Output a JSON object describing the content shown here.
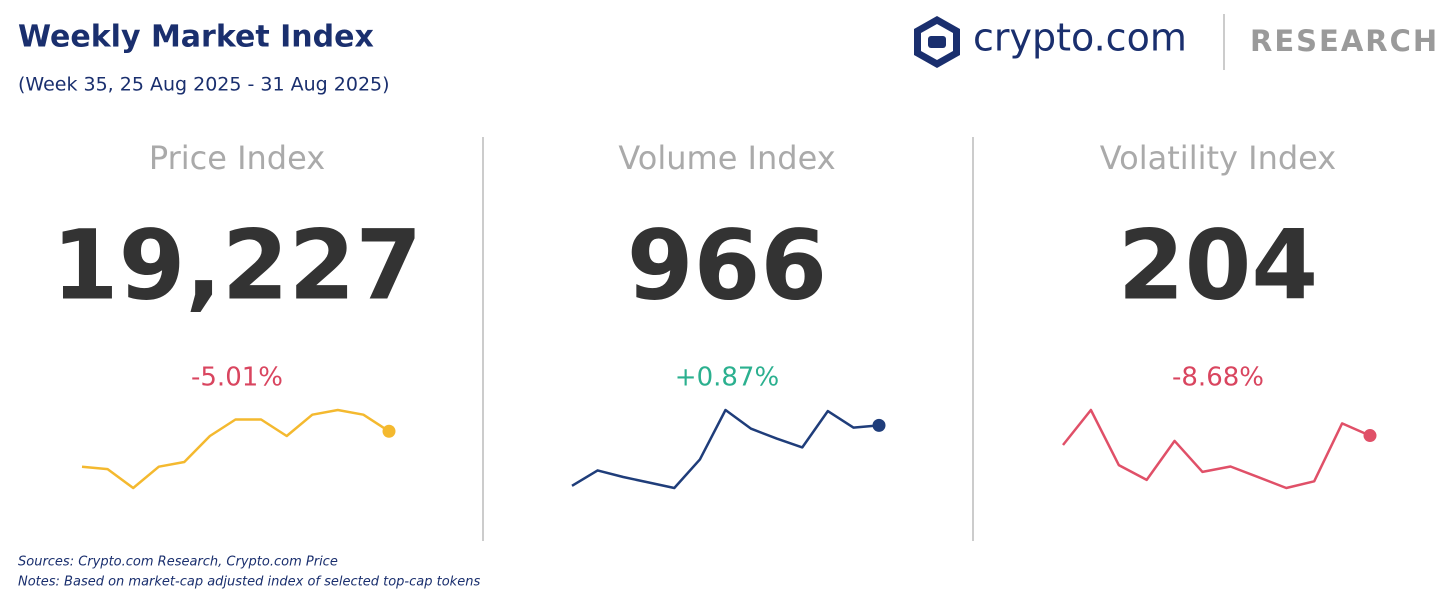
{
  "header": {
    "title": "Weekly Market Index",
    "subtitle": "(Week 35, 25 Aug 2025 - 31 Aug 2025)",
    "brand": "crypto.com",
    "brand_section": "RESEARCH"
  },
  "cards": [
    {
      "title": "Price Index",
      "value": "19,227",
      "change": "-5.01%",
      "change_color": "#d9455f",
      "line_color": "#f4b92f",
      "sparkline": [
        23,
        22,
        14,
        23,
        25,
        36,
        43,
        43,
        36,
        45,
        47,
        45,
        38
      ]
    },
    {
      "title": "Volume Index",
      "value": "966",
      "change": "+0.87%",
      "change_color": "#2bb08f",
      "line_color": "#1f3d7a",
      "sparkline": [
        17,
        31,
        25,
        20,
        15,
        41,
        86,
        69,
        60,
        52,
        85,
        70,
        72
      ]
    },
    {
      "title": "Volatility Index",
      "value": "204",
      "change": "-8.68%",
      "change_color": "#d9455f",
      "line_color": "#e05068",
      "sparkline": [
        60,
        86,
        45,
        34,
        63,
        40,
        44,
        36,
        28,
        33,
        76,
        67
      ]
    }
  ],
  "footer": {
    "sources": "Sources: Crypto.com Research,  Crypto.com Price",
    "notes": "Notes: Based on market-cap adjusted index of selected top-cap tokens"
  }
}
